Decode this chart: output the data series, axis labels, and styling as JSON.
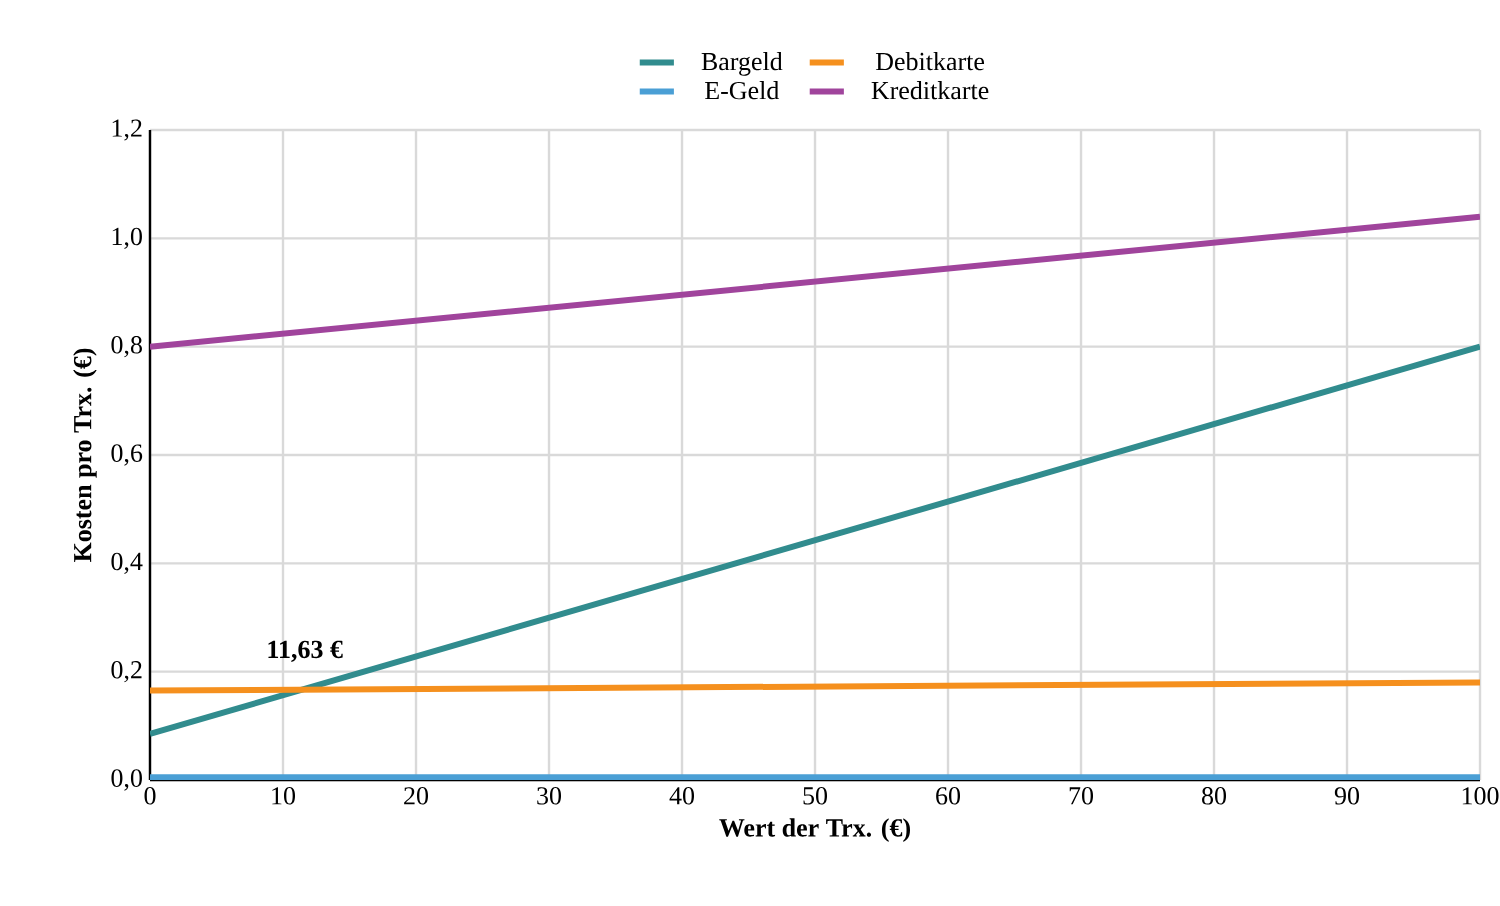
{
  "chart_data": {
    "type": "line",
    "xlabel": "Wert der Trx. (€)",
    "ylabel": "Kosten pro Trx. (€)",
    "xlim": [
      0,
      100
    ],
    "xticks": [
      0,
      10,
      20,
      30,
      40,
      50,
      60,
      70,
      80,
      90,
      100
    ],
    "ylim": [
      0,
      1.2
    ],
    "yticks": [
      {
        "value": 0,
        "label": "0,0"
      },
      {
        "value": 0.2,
        "label": "0,2"
      },
      {
        "value": 0.4,
        "label": "0,4"
      },
      {
        "value": 0.6,
        "label": "0,6"
      },
      {
        "value": 0.8,
        "label": "0,8"
      },
      {
        "value": 1.0,
        "label": "1,0"
      },
      {
        "value": 1.2,
        "label": "1,2"
      }
    ],
    "grid": true,
    "legend": "top",
    "marker": "none",
    "line_style": "solid",
    "x": [
      0,
      100
    ],
    "series": [
      {
        "name": "Bargeld",
        "color": "#318c8e",
        "values": [
          0.085,
          0.8
        ]
      },
      {
        "name": "E-Geld",
        "color": "#4a9fd5",
        "values": [
          0.005,
          0.005
        ]
      },
      {
        "name": "Debitkarte",
        "color": "#f5901e",
        "values": [
          0.165,
          0.18
        ]
      },
      {
        "name": "Kreditkarte",
        "color": "#a0449c",
        "values": [
          0.8,
          1.04
        ]
      }
    ],
    "annotations": [
      {
        "text": "11,63 €",
        "x": 11.63,
        "y": 0.168
      }
    ]
  }
}
